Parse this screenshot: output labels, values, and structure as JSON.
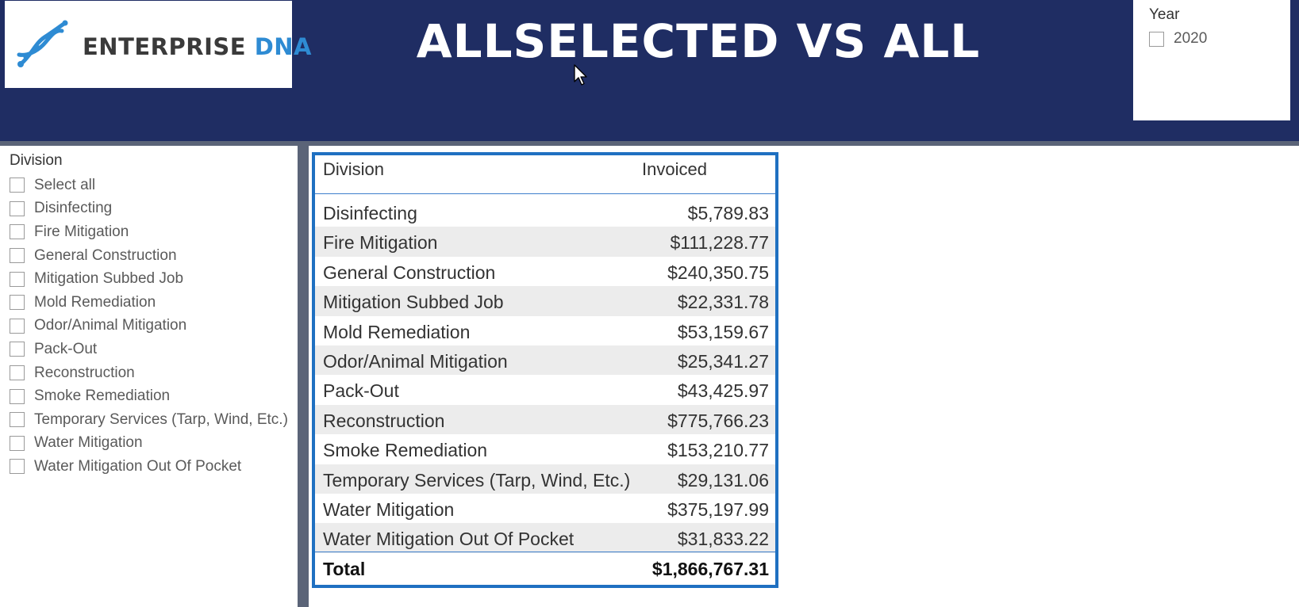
{
  "header": {
    "logo": {
      "text_main": "ENTERPRISE",
      "text_accent": "DNA",
      "icon": "dna-icon"
    },
    "title": "ALLSELECTED VS ALL",
    "bg_color": "#1f2d63"
  },
  "year_slicer": {
    "title": "Year",
    "options": [
      {
        "label": "2020",
        "checked": false
      }
    ]
  },
  "division_slicer": {
    "title": "Division",
    "options": [
      {
        "label": "Select all",
        "checked": false
      },
      {
        "label": "Disinfecting",
        "checked": false
      },
      {
        "label": "Fire Mitigation",
        "checked": false
      },
      {
        "label": "General Construction",
        "checked": false
      },
      {
        "label": "Mitigation Subbed Job",
        "checked": false
      },
      {
        "label": "Mold Remediation",
        "checked": false
      },
      {
        "label": "Odor/Animal Mitigation",
        "checked": false
      },
      {
        "label": "Pack-Out",
        "checked": false
      },
      {
        "label": "Reconstruction",
        "checked": false
      },
      {
        "label": "Smoke Remediation",
        "checked": false
      },
      {
        "label": "Temporary Services (Tarp, Wind, Etc.)",
        "checked": false
      },
      {
        "label": "Water Mitigation",
        "checked": false
      },
      {
        "label": "Water Mitigation Out Of Pocket",
        "checked": false
      }
    ]
  },
  "table": {
    "columns": [
      "Division",
      "Invoiced"
    ],
    "rows": [
      {
        "division": "Disinfecting",
        "invoiced": "$5,789.83"
      },
      {
        "division": "Fire Mitigation",
        "invoiced": "$111,228.77"
      },
      {
        "division": "General Construction",
        "invoiced": "$240,350.75"
      },
      {
        "division": "Mitigation Subbed Job",
        "invoiced": "$22,331.78"
      },
      {
        "division": "Mold Remediation",
        "invoiced": "$53,159.67"
      },
      {
        "division": "Odor/Animal Mitigation",
        "invoiced": "$25,341.27"
      },
      {
        "division": "Pack-Out",
        "invoiced": "$43,425.97"
      },
      {
        "division": "Reconstruction",
        "invoiced": "$775,766.23"
      },
      {
        "division": "Smoke Remediation",
        "invoiced": "$153,210.77"
      },
      {
        "division": "Temporary Services (Tarp, Wind, Etc.)",
        "invoiced": "$29,131.06"
      },
      {
        "division": "Water Mitigation",
        "invoiced": "$375,197.99"
      },
      {
        "division": "Water Mitigation Out Of Pocket",
        "invoiced": "$31,833.22"
      }
    ],
    "total": {
      "label": "Total",
      "value": "$1,866,767.31"
    },
    "border_color": "#1f70c1",
    "alt_row_color": "#ececec"
  }
}
